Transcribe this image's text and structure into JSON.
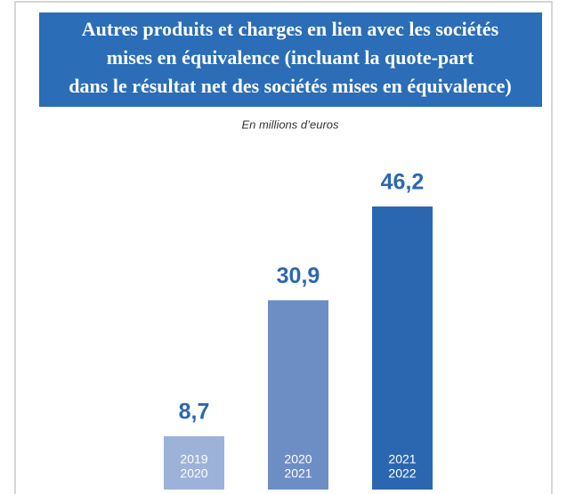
{
  "chart_data": {
    "type": "bar",
    "title": [
      "Autres produits et charges en lien avec les sociétés",
      "mises en équivalence (incluant la quote-part",
      "dans le résultat net des sociétés mises en équivalence)"
    ],
    "subtitle": "En millions d’euros",
    "categories": [
      [
        "2019",
        "2020"
      ],
      [
        "2020",
        "2021"
      ],
      [
        "2021",
        "2022"
      ]
    ],
    "values": [
      8.7,
      30.9,
      46.2
    ],
    "value_labels": [
      "8,7",
      "30,9",
      "46,2"
    ],
    "colors": [
      "#9db2d8",
      "#6d8dc5",
      "#2b67b1"
    ],
    "label_color": "#2b67b1"
  }
}
